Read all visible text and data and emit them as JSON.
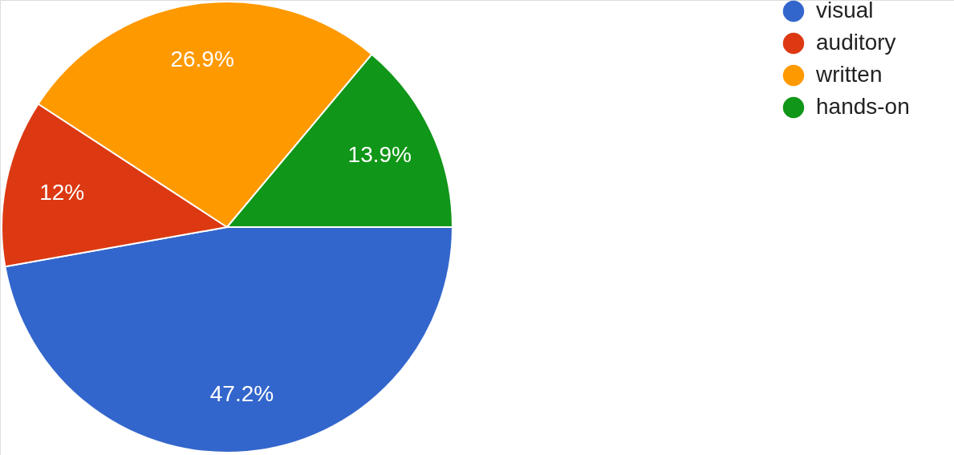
{
  "chart_data": {
    "type": "pie",
    "categories": [
      "visual",
      "auditory",
      "written",
      "hands-on"
    ],
    "values": [
      47.2,
      12,
      26.9,
      13.9
    ],
    "colors": [
      "#3366cc",
      "#dc3912",
      "#ff9900",
      "#109618"
    ],
    "value_labels": [
      "47.2%",
      "12%",
      "26.9%",
      "13.9%"
    ],
    "legend": "top right"
  }
}
